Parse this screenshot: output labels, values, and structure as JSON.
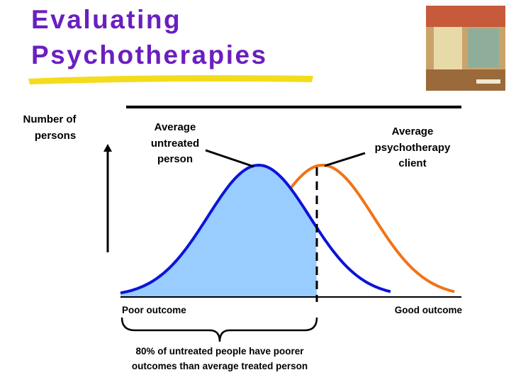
{
  "title": [
    "Evaluating",
    "Psychotherapies"
  ],
  "diagram": {
    "y_label": [
      "Number of",
      "persons"
    ],
    "untreated_label": [
      "Average",
      "untreated",
      "person"
    ],
    "client_label": [
      "Average",
      "psychotherapy",
      "client"
    ],
    "x_left": "Poor outcome",
    "x_right": "Good outcome",
    "note": [
      "80% of untreated people have poorer",
      "outcomes than average treated person"
    ]
  }
}
